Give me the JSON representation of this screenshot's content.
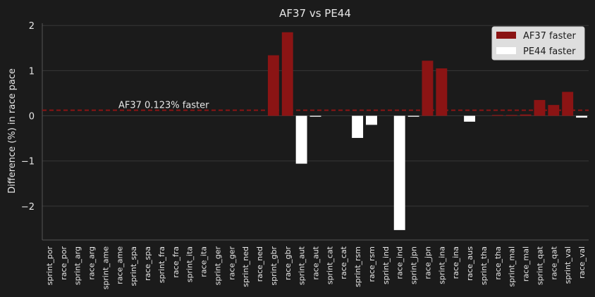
{
  "chart_data": {
    "type": "bar",
    "title": "AF37 vs PE44",
    "xlabel": "",
    "ylabel": "Difference (%) in race pace",
    "ylim": [
      -2.75,
      2.05
    ],
    "yticks": [
      -2,
      -1,
      0,
      1,
      2
    ],
    "ytick_labels": [
      "−2",
      "−1",
      "0",
      "1",
      "2"
    ],
    "grid": true,
    "legend_position": "top-right",
    "legend": [
      {
        "label": "AF37 faster",
        "color": "#8b1414"
      },
      {
        "label": "PE44 faster",
        "color": "#ffffff"
      }
    ],
    "mean_line": {
      "value": 0.123,
      "label": "AF37 0.123% faster",
      "color": "#8b1414"
    },
    "categories": [
      "sprint_por",
      "race_por",
      "sprint_arg",
      "race_arg",
      "sprint_ame",
      "race_ame",
      "sprint_spa",
      "race_spa",
      "sprint_fra",
      "race_fra",
      "sprint_ita",
      "race_ita",
      "sprint_ger",
      "race_ger",
      "sprint_ned",
      "race_ned",
      "sprint_gbr",
      "race_gbr",
      "sprint_aut",
      "race_aut",
      "sprint_cat",
      "race_cat",
      "sprint_rsm",
      "race_rsm",
      "sprint_ind",
      "race_ind",
      "sprint_jpn",
      "race_jpn",
      "sprint_ina",
      "race_ina",
      "race_aus",
      "sprint_tha",
      "race_tha",
      "sprint_mal",
      "race_mal",
      "sprint_qat",
      "race_qat",
      "sprint_val",
      "race_val"
    ],
    "values": [
      0,
      0,
      0,
      0,
      0,
      0,
      0,
      0,
      0,
      0,
      0,
      0,
      0,
      0,
      0,
      0,
      1.34,
      1.85,
      -1.06,
      -0.02,
      0,
      0,
      -0.49,
      -0.2,
      0,
      -2.53,
      -0.02,
      1.22,
      1.05,
      0,
      -0.13,
      0,
      0.01,
      0.01,
      0.03,
      0.35,
      0.24,
      0.53,
      -0.04
    ]
  }
}
